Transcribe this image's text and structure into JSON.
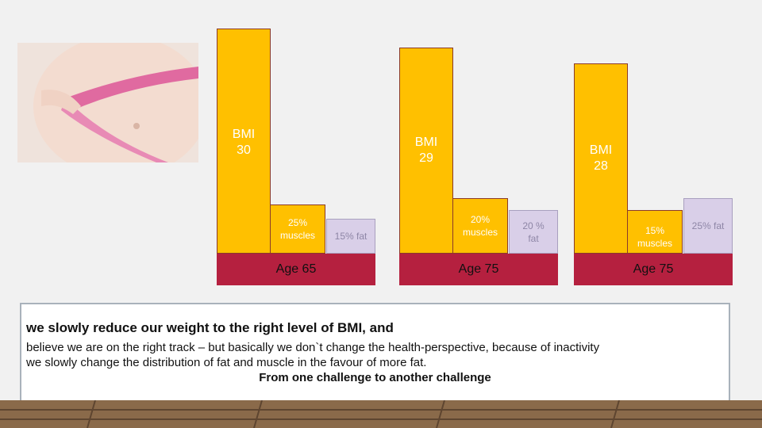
{
  "groups": [
    {
      "bmi": "BMI\n30",
      "muscles": "25%\nmuscles",
      "fat": "15% fat",
      "age": "Age 65"
    },
    {
      "bmi": "BMI\n29",
      "muscles": "20%\nmuscles",
      "fat": "20 %\nfat",
      "age": "Age 75"
    },
    {
      "bmi": "BMI\n28",
      "muscles": "15%\nmuscles",
      "fat": "25% fat",
      "age": "Age 75"
    }
  ],
  "text_box": {
    "lines": [
      "we slowly reduce our weight to the right level of BMI, and",
      "believe we are on the right track – but basically we don`t change the health-perspective, because of inactivity",
      "we slowly change the distribution of fat and muscle in the favour of more fat.",
      "From one challenge to another challenge"
    ]
  }
}
